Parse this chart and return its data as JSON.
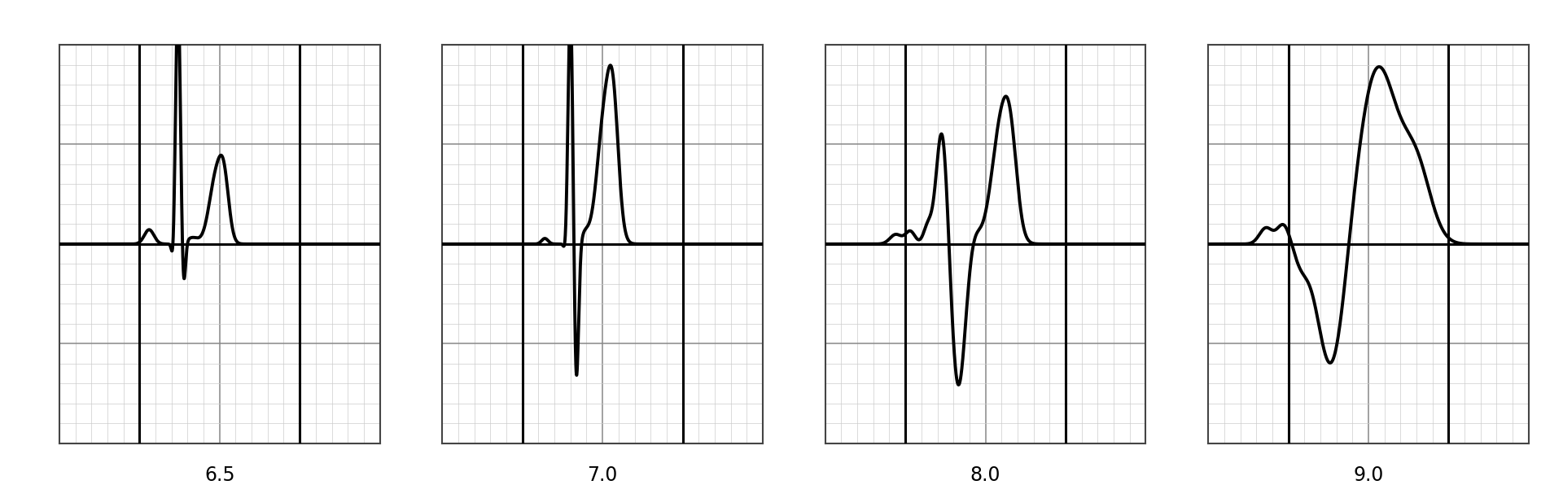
{
  "labels": [
    "6.5",
    "7.0",
    "8.0",
    "9.0"
  ],
  "background_color": "#ffffff",
  "grid_color": "#888888",
  "ecg_color": "#000000",
  "line_width": 2.8,
  "label_fontsize": 17,
  "panel_bg": "#ffffff",
  "minor_grid_color": "#cccccc",
  "border_color": "#444444",
  "xlim": [
    0,
    10
  ],
  "ylim": [
    -2.5,
    2.5
  ]
}
